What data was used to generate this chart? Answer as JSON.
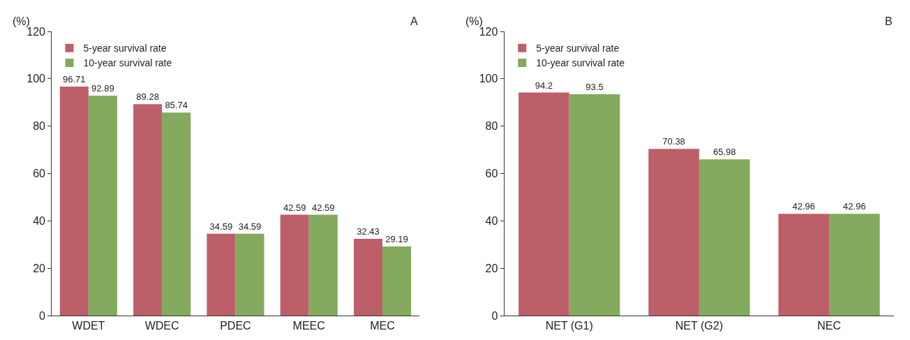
{
  "chart_data": [
    {
      "type": "bar",
      "title": "A",
      "ylabel": "(%)",
      "categories": [
        "WDET",
        "WDEC",
        "PDEC",
        "MEEC",
        "MEC"
      ],
      "ylim": [
        0,
        120
      ],
      "yticks": [
        0,
        20,
        40,
        60,
        80,
        100,
        120
      ],
      "data_labels": true,
      "legend": "top left",
      "series": [
        {
          "name": "5-year survival rate",
          "color": "#bd5f69",
          "values": [
            96.71,
            89.28,
            34.59,
            42.59,
            32.43
          ]
        },
        {
          "name": "10-year survival rate",
          "color": "#83aa5d",
          "values": [
            92.89,
            85.74,
            34.59,
            42.59,
            29.19
          ]
        }
      ]
    },
    {
      "type": "bar",
      "title": "B",
      "ylabel": "(%)",
      "categories": [
        "NET (G1)",
        "NET (G2)",
        "NEC"
      ],
      "ylim": [
        0,
        120
      ],
      "yticks": [
        0,
        20,
        40,
        60,
        80,
        100,
        120
      ],
      "data_labels": true,
      "legend": "top left",
      "series": [
        {
          "name": "5-year survival rate",
          "color": "#bd5f69",
          "values": [
            94.2,
            70.38,
            42.96
          ]
        },
        {
          "name": "10-year survival rate",
          "color": "#83aa5d",
          "values": [
            93.5,
            65.98,
            42.96
          ]
        }
      ]
    }
  ]
}
